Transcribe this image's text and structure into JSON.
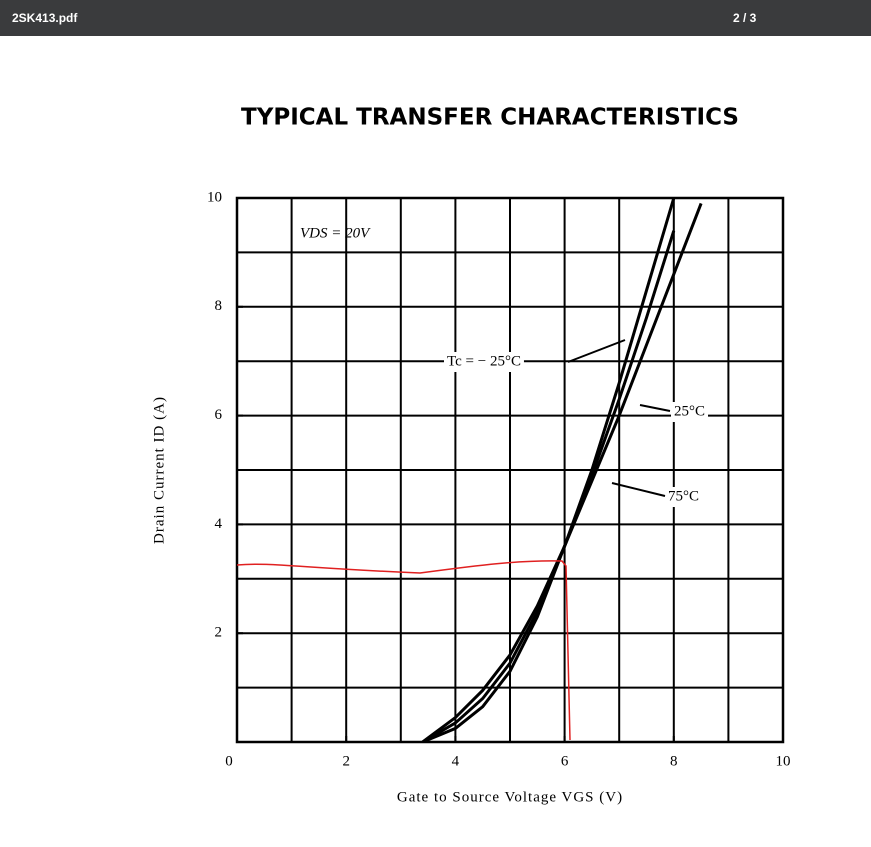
{
  "toolbar": {
    "filename": "2SK413.pdf",
    "page": "2 / 3"
  },
  "chart_data": {
    "type": "line",
    "title": "TYPICAL TRANSFER CHARACTERISTICS",
    "x_label": "Gate to Source Voltage VGS (V)",
    "y_label": "Drain Current ID (A)",
    "annotation": "VDS = 20V",
    "x": [
      3.4,
      4,
      4.5,
      5,
      5.5,
      6,
      6.5,
      7,
      7.5,
      8,
      8.5
    ],
    "series": [
      {
        "name": "Tc = − 25°C",
        "color": "#000000",
        "values": [
          0,
          0.25,
          0.65,
          1.3,
          2.3,
          3.6,
          5.0,
          6.6,
          8.3,
          10.0,
          null
        ]
      },
      {
        "name": "25°C",
        "color": "#000000",
        "values": [
          0,
          0.35,
          0.8,
          1.45,
          2.4,
          3.6,
          4.9,
          6.3,
          7.8,
          9.4,
          null
        ]
      },
      {
        "name": "75°C",
        "color": "#000000",
        "values": [
          0,
          0.45,
          0.95,
          1.6,
          2.5,
          3.6,
          4.8,
          6.0,
          7.3,
          8.6,
          9.9
        ]
      }
    ],
    "xlim": [
      0,
      10
    ],
    "ylim": [
      0,
      10
    ],
    "xticks": [
      0,
      2,
      4,
      6,
      8,
      10
    ],
    "yticks": [
      0,
      2,
      4,
      6,
      8,
      10
    ],
    "grid": true
  }
}
